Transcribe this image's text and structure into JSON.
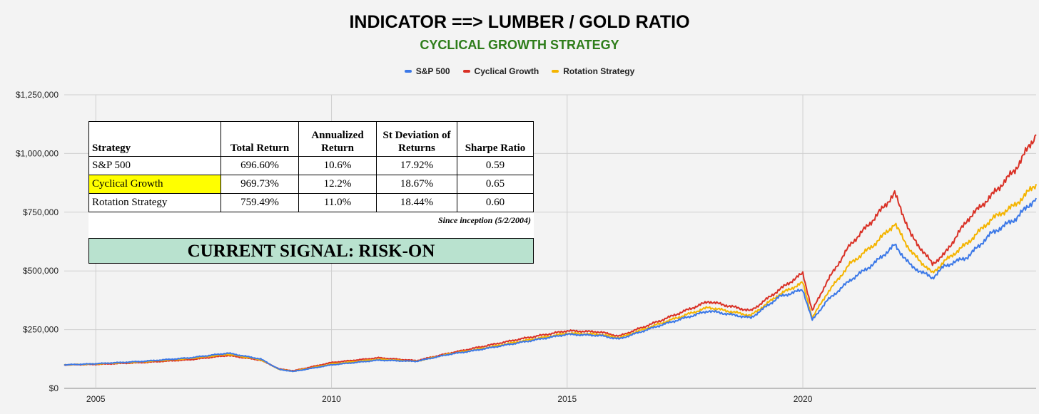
{
  "chart_data": {
    "type": "line",
    "title": "INDICATOR ==> LUMBER / GOLD RATIO",
    "subtitle": "CYCLICAL GROWTH STRATEGY",
    "xlabel": "",
    "ylabel": "",
    "ylim": [
      0,
      1250000
    ],
    "xlim": [
      2004.33,
      2024.95
    ],
    "yticks": [
      {
        "value": 0,
        "label": "$0"
      },
      {
        "value": 250000,
        "label": "$250,000"
      },
      {
        "value": 500000,
        "label": "$500,000"
      },
      {
        "value": 750000,
        "label": "$750,000"
      },
      {
        "value": 1000000,
        "label": "$1,000,000"
      },
      {
        "value": 1250000,
        "label": "$1,250,000"
      }
    ],
    "xticks": [
      {
        "value": 2005,
        "label": "2005"
      },
      {
        "value": 2010,
        "label": "2010"
      },
      {
        "value": 2015,
        "label": "2015"
      },
      {
        "value": 2020,
        "label": "2020"
      }
    ],
    "grid": true,
    "legend_position": "top",
    "x": [
      2004.33,
      2005,
      2006,
      2007,
      2007.8,
      2008.5,
      2008.9,
      2009.2,
      2010,
      2011,
      2011.8,
      2012.5,
      2013,
      2014,
      2015,
      2015.7,
      2016.1,
      2017,
      2018,
      2018.9,
      2019.5,
      2020.0,
      2020.2,
      2020.5,
      2021,
      2021.5,
      2021.95,
      2022.3,
      2022.75,
      2023,
      2023.5,
      2024,
      2024.5,
      2024.95
    ],
    "series": [
      {
        "name": "S&P 500",
        "color": "#3b78e7",
        "values": [
          100000,
          105000,
          115000,
          130000,
          150000,
          125000,
          80000,
          72000,
          100000,
          120000,
          115000,
          145000,
          160000,
          195000,
          230000,
          225000,
          210000,
          270000,
          330000,
          300000,
          390000,
          420000,
          290000,
          370000,
          460000,
          530000,
          610000,
          520000,
          470000,
          520000,
          560000,
          660000,
          720000,
          810000
        ]
      },
      {
        "name": "Cyclical Growth",
        "color": "#d93025",
        "values": [
          100000,
          102000,
          110000,
          122000,
          140000,
          120000,
          82000,
          75000,
          110000,
          130000,
          118000,
          150000,
          170000,
          210000,
          245000,
          240000,
          222000,
          290000,
          370000,
          330000,
          420000,
          490000,
          330000,
          450000,
          610000,
          720000,
          830000,
          650000,
          530000,
          570000,
          720000,
          820000,
          930000,
          1080000
        ]
      },
      {
        "name": "Rotation Strategy",
        "color": "#f4b400",
        "values": [
          100000,
          104000,
          113000,
          127000,
          145000,
          122000,
          80000,
          73000,
          104000,
          124000,
          115000,
          147000,
          163000,
          200000,
          235000,
          230000,
          215000,
          278000,
          345000,
          310000,
          400000,
          450000,
          300000,
          400000,
          530000,
          610000,
          700000,
          580000,
          490000,
          540000,
          620000,
          720000,
          780000,
          870000
        ]
      }
    ]
  },
  "stats_table": {
    "headers": [
      "Strategy",
      "Total Return",
      "Annualized Return",
      "St Deviation of Returns",
      "Sharpe Ratio"
    ],
    "rows": [
      {
        "strategy": "S&P 500",
        "total": "696.60%",
        "annualized": "10.6%",
        "stdev": "17.92%",
        "sharpe": "0.59"
      },
      {
        "strategy": "Cyclical Growth",
        "total": "969.73%",
        "annualized": "12.2%",
        "stdev": "18.67%",
        "sharpe": "0.65"
      },
      {
        "strategy": "Rotation Strategy",
        "total": "759.49%",
        "annualized": "11.0%",
        "stdev": "18.44%",
        "sharpe": "0.60"
      }
    ],
    "highlight_color": "#ffff00",
    "note": "Since inception (5/2/2004)"
  },
  "signal": {
    "text": "CURRENT SIGNAL: RISK-ON",
    "background": "#b9e2cf"
  }
}
